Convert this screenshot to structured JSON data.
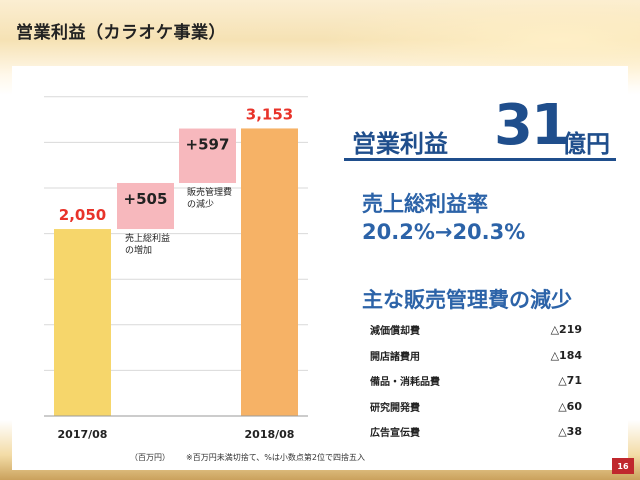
{
  "title": "営業利益（カラオケ事業）",
  "kpi": {
    "label": "営業利益",
    "value": "31",
    "unit": "億円"
  },
  "gross_margin": {
    "label": "売上総利益率",
    "value": "20.2%→20.3%"
  },
  "cost_reduction": {
    "title": "主な販売管理費の減少",
    "items": [
      {
        "label": "減価償却費",
        "value": "△219"
      },
      {
        "label": "開店諸費用",
        "value": "△184"
      },
      {
        "label": "備品・消耗品費",
        "value": "△71"
      },
      {
        "label": "研究開発費",
        "value": "△60"
      },
      {
        "label": "広告宣伝費",
        "value": "△38"
      }
    ]
  },
  "unit_note": "（百万円）",
  "rounding_note": "※百万円未満切捨て、%は小数点第2位で四捨五入",
  "page_number": "16",
  "colors": {
    "start_bar": "#f6d66b",
    "end_bar": "#f6b266",
    "delta_bar": "#f7b8bd",
    "value_red": "#e8332a",
    "accent_blue": "#2c63a8",
    "page_badge": "#c0272d"
  },
  "chart_data": {
    "type": "bar",
    "subtype": "waterfall",
    "categories": [
      "2017/08",
      "",
      "",
      "2018/08"
    ],
    "bars": [
      {
        "label": "2017/08",
        "value": 2050,
        "display": "2,050",
        "base": 0,
        "kind": "total"
      },
      {
        "label": "",
        "value": 505,
        "display": "+505",
        "base": 2050,
        "kind": "increase",
        "annotation": [
          "売上総利益",
          "の増加"
        ]
      },
      {
        "label": "",
        "value": 597,
        "display": "+597",
        "base": 2555,
        "kind": "increase",
        "annotation": [
          "販売管理費",
          "の減少"
        ]
      },
      {
        "label": "2018/08",
        "value": 3153,
        "display": "3,153",
        "base": 0,
        "kind": "total"
      }
    ],
    "ylim": [
      0,
      4000
    ],
    "grid": true,
    "ylabel": "",
    "xlabel": ""
  }
}
